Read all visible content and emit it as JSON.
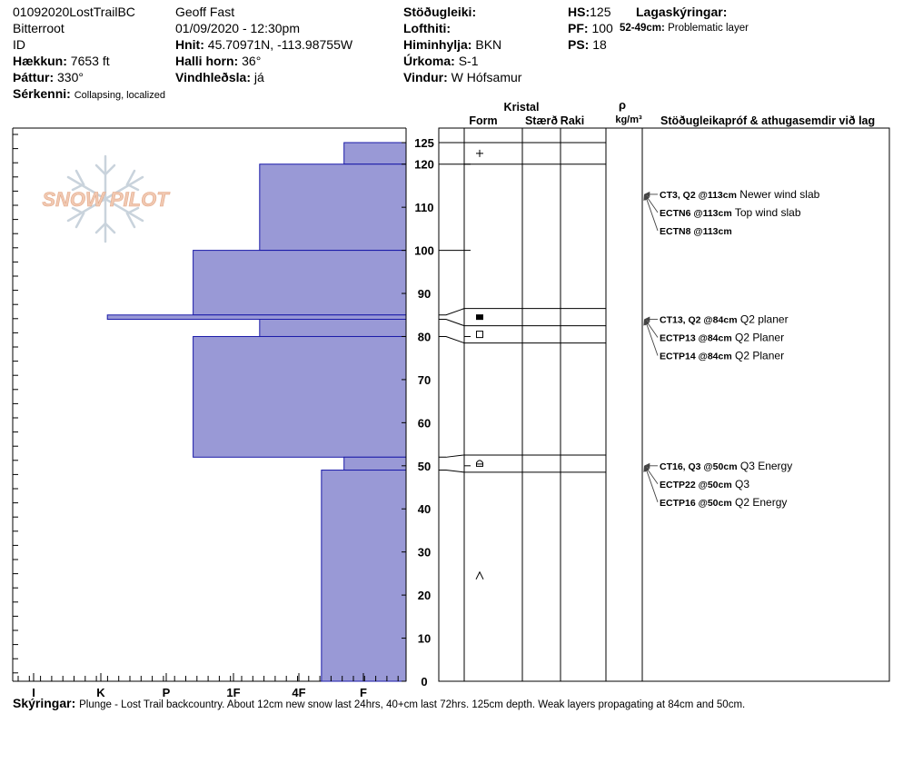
{
  "header": {
    "station_id": "01092020LostTrailBC",
    "region": "Bitterroot",
    "id_label": "ID",
    "elevation": {
      "label": "Hækkun:",
      "value": "7653 ft"
    },
    "aspect": {
      "label": "Þáttur:",
      "value": "330°"
    },
    "features": {
      "label": "Sérkenni:",
      "value": "Collapsing, localized"
    },
    "observer": "Geoff Fast",
    "datetime": "01/09/2020 - 12:30pm",
    "coords": {
      "label": "Hnit:",
      "value": "45.70971N, -113.98755W"
    },
    "slope": {
      "label": "Halli horn:",
      "value": "36°"
    },
    "wind_loading": {
      "label": "Vindhleðsla:",
      "value": "já"
    },
    "stability": {
      "label": "Stöðugleiki:",
      "value": ""
    },
    "air_temp": {
      "label": "Lofthiti:",
      "value": ""
    },
    "sky": {
      "label": "Himinhylja:",
      "value": "BKN"
    },
    "precip": {
      "label": "Úrkoma:",
      "value": "S-1"
    },
    "wind": {
      "label": "Vindur:",
      "value": "W Hófsamur"
    },
    "hs": {
      "label": "HS:",
      "value": "125"
    },
    "pf": {
      "label": "PF:",
      "value": "100"
    },
    "ps": {
      "label": "PS:",
      "value": "18"
    },
    "layer_notes_title": "Lagaskýringar:",
    "layer_note": {
      "range": "52-49cm:",
      "text": "Problematic layer"
    }
  },
  "columns": {
    "kristal": "Kristal",
    "form": "Form",
    "size": "Stærð",
    "moisture": "Raki",
    "rho": "ρ",
    "density_unit": "kg/m³",
    "tests": "Stöðugleikapróf & athugasemdir við lag"
  },
  "chart_data": {
    "type": "bar",
    "orientation": "horizontal",
    "y_axis": {
      "range": [
        0,
        125
      ],
      "ticks": [
        0,
        10,
        20,
        30,
        40,
        50,
        60,
        70,
        80,
        90,
        100,
        110,
        120,
        125
      ]
    },
    "x_axis": {
      "tick_labels": [
        "I",
        "K",
        "P",
        "1F",
        "4F",
        "F"
      ],
      "reversed": true
    },
    "hardness_layers": [
      {
        "bottom": 120,
        "top": 125,
        "hardness": 0.3
      },
      {
        "bottom": 100,
        "top": 120,
        "hardness": 1.6
      },
      {
        "bottom": 85,
        "top": 100,
        "hardness": 2.6
      },
      {
        "bottom": 84,
        "top": 85,
        "hardness": 3.9
      },
      {
        "bottom": 80,
        "top": 84,
        "hardness": 1.6
      },
      {
        "bottom": 52,
        "top": 80,
        "hardness": 2.6
      },
      {
        "bottom": 49,
        "top": 52,
        "hardness": 0.3
      },
      {
        "bottom": 0,
        "top": 49,
        "hardness": 0.65
      }
    ],
    "crystal_layer_lines": [
      125,
      120,
      86.5,
      82.5,
      78.5,
      52.5,
      48.5
    ],
    "connector_lines": [
      {
        "chart_height": 125,
        "grid_height": 125
      },
      {
        "chart_height": 120,
        "grid_height": 120
      },
      {
        "chart_height": 100,
        "grid_height": 100
      },
      {
        "chart_height": 85,
        "grid_height": 86.5
      },
      {
        "chart_height": 84,
        "grid_height": 82.5
      },
      {
        "chart_height": 80,
        "grid_height": 78.5
      },
      {
        "chart_height": 52,
        "grid_height": 52.5
      },
      {
        "chart_height": 49,
        "grid_height": 48.5
      }
    ],
    "crystal_symbols": [
      {
        "height": 122.5,
        "symbol": "+",
        "shape": "plus"
      },
      {
        "height": 84.5,
        "symbol": "■",
        "shape": "filled-square"
      },
      {
        "height": 80.5,
        "symbol": "□",
        "shape": "open-square"
      },
      {
        "height": 50.5,
        "symbol": "⌂",
        "shape": "faceted-rounded"
      },
      {
        "height": 24.5,
        "symbol": "^",
        "shape": "caret"
      }
    ],
    "stability_tests": [
      {
        "test": "CT3, Q2 @113cm",
        "note": "Newer wind slab",
        "height": 113,
        "row": 0
      },
      {
        "test": "ECTN6 @113cm",
        "note": "Top wind slab",
        "height": 113,
        "row": 1
      },
      {
        "test": "ECTN8 @113cm",
        "note": "",
        "height": 113,
        "row": 2
      },
      {
        "test": "CT13, Q2 @84cm",
        "note": "Q2 planer",
        "height": 84,
        "row": 0
      },
      {
        "test": "ECTP13 @84cm",
        "note": "Q2 Planer",
        "height": 84,
        "row": 1
      },
      {
        "test": "ECTP14 @84cm",
        "note": "Q2 Planer",
        "height": 84,
        "row": 2
      },
      {
        "test": "CT16, Q3 @50cm",
        "note": "Q3 Energy",
        "height": 50,
        "row": 0
      },
      {
        "test": "ECTP22 @50cm",
        "note": "Q3",
        "height": 50,
        "row": 1
      },
      {
        "test": "ECTP16 @50cm",
        "note": "Q2 Energy",
        "height": 50,
        "row": 2
      }
    ],
    "colors": {
      "bar_fill": "#9999d6",
      "bar_stroke": "#1a1aa8",
      "logo_text": "#f1c9b2",
      "logo_flake": "#c9d3dc"
    }
  },
  "logo": {
    "text": "SNOW PILOT"
  },
  "comments": {
    "label": "Skýringar:",
    "text": "Plunge - Lost Trail backcountry. About 12cm new snow last 24hrs, 40+cm last 72hrs. 125cm depth. Weak layers propagating at 84cm and 50cm."
  }
}
